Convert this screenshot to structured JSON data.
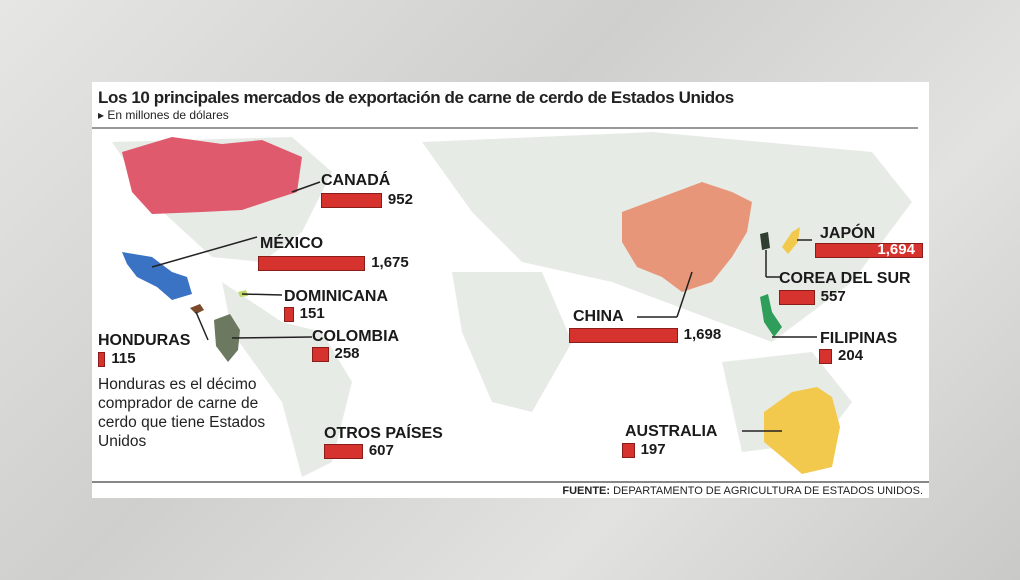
{
  "title": "Los 10 principales mercados de exportación de carne de cerdo de Estados Unidos",
  "subtitle": "En millones de dólares",
  "note": "Honduras es el décimo comprador de carne de cerdo que tiene Estados Unidos",
  "source_label": "FUENTE:",
  "source_text": "DEPARTAMENTO DE AGRICULTURA DE ESTADOS UNIDOS.",
  "colors": {
    "bar": "#d6332e",
    "canada": "#e05a6e",
    "mexico": "#3a72c4",
    "china": "#e8967a",
    "australia": "#f2c94c",
    "land": "#e7ebe6"
  },
  "chart_data": {
    "type": "bar",
    "title": "Los 10 principales mercados de exportación de carne de cerdo de Estados Unidos",
    "unit": "En millones de dólares",
    "categories": [
      "CANADÁ",
      "MÉXICO",
      "DOMINICANA",
      "HONDURAS",
      "COLOMBIA",
      "OTROS PAÍSES",
      "CHINA",
      "JAPÓN",
      "COREA DEL SUR",
      "FILIPINAS",
      "AUSTRALIA"
    ],
    "values": [
      952,
      1675,
      151,
      115,
      258,
      607,
      1698,
      1694,
      557,
      204,
      197
    ],
    "value_labels": [
      "952",
      "1,675",
      "151",
      "115",
      "258",
      "607",
      "1,698",
      "1,694",
      "557",
      "204",
      "197"
    ]
  }
}
